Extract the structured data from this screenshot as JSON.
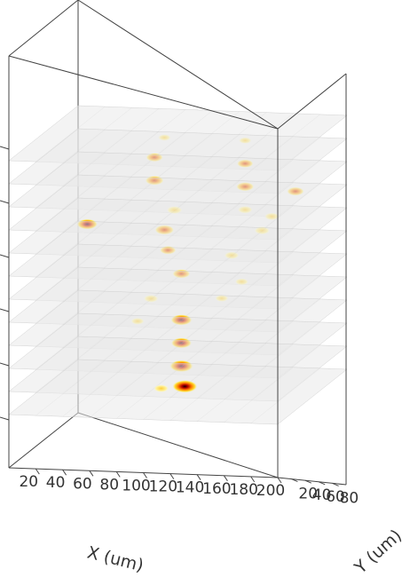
{
  "chart_data": {
    "type": "scatter",
    "projection": "3d",
    "xlabel": "X (um)",
    "ylabel": "Y (um)",
    "zlabel": "",
    "xlim": [
      0,
      200
    ],
    "ylim": [
      0,
      100
    ],
    "x_ticks": [
      "20",
      "40",
      "60",
      "80",
      "100",
      "120",
      "140",
      "160",
      "180",
      "200"
    ],
    "y_ticks": [
      "20",
      "40",
      "60",
      "80"
    ],
    "z_tick_count": 6,
    "z_tick_labels_visible": false,
    "slice_count": 12,
    "grid": false,
    "legend": "none",
    "colormap": "hot_r",
    "slices": [
      {
        "index": 0,
        "hotspots": [
          {
            "x": 100,
            "y": 60,
            "value": 1.0
          },
          {
            "x": 85,
            "y": 55,
            "value": 0.3
          }
        ]
      },
      {
        "index": 1,
        "hotspots": [
          {
            "x": 100,
            "y": 55,
            "value": 0.9
          }
        ]
      },
      {
        "index": 2,
        "hotspots": [
          {
            "x": 100,
            "y": 55,
            "value": 0.7
          }
        ]
      },
      {
        "index": 3,
        "hotspots": [
          {
            "x": 100,
            "y": 55,
            "value": 0.75
          },
          {
            "x": 70,
            "y": 50,
            "value": 0.2
          }
        ]
      },
      {
        "index": 4,
        "hotspots": [
          {
            "x": 80,
            "y": 50,
            "value": 0.3
          },
          {
            "x": 130,
            "y": 55,
            "value": 0.2
          }
        ]
      },
      {
        "index": 5,
        "hotspots": [
          {
            "x": 100,
            "y": 55,
            "value": 0.5
          },
          {
            "x": 150,
            "y": 45,
            "value": 0.2
          }
        ]
      },
      {
        "index": 6,
        "hotspots": [
          {
            "x": 90,
            "y": 55,
            "value": 0.4
          },
          {
            "x": 140,
            "y": 50,
            "value": 0.3
          }
        ]
      },
      {
        "index": 7,
        "hotspots": [
          {
            "x": 30,
            "y": 55,
            "value": 0.7
          },
          {
            "x": 90,
            "y": 50,
            "value": 0.6
          },
          {
            "x": 160,
            "y": 55,
            "value": 0.35
          }
        ]
      },
      {
        "index": 8,
        "hotspots": [
          {
            "x": 100,
            "y": 45,
            "value": 0.35
          },
          {
            "x": 150,
            "y": 50,
            "value": 0.3
          },
          {
            "x": 175,
            "y": 40,
            "value": 0.3
          }
        ]
      },
      {
        "index": 9,
        "hotspots": [
          {
            "x": 80,
            "y": 55,
            "value": 0.55
          },
          {
            "x": 150,
            "y": 50,
            "value": 0.5
          },
          {
            "x": 190,
            "y": 45,
            "value": 0.45
          }
        ]
      },
      {
        "index": 10,
        "hotspots": [
          {
            "x": 80,
            "y": 55,
            "value": 0.45
          },
          {
            "x": 150,
            "y": 50,
            "value": 0.4
          }
        ]
      },
      {
        "index": 11,
        "hotspots": [
          {
            "x": 90,
            "y": 50,
            "value": 0.15
          },
          {
            "x": 150,
            "y": 50,
            "value": 0.15
          }
        ]
      }
    ]
  },
  "colors": {
    "box_edge": "#444444",
    "slice_fill": "#e9e9e9",
    "slice_grid": "#c8c8c8",
    "tick_text": "#333333"
  }
}
